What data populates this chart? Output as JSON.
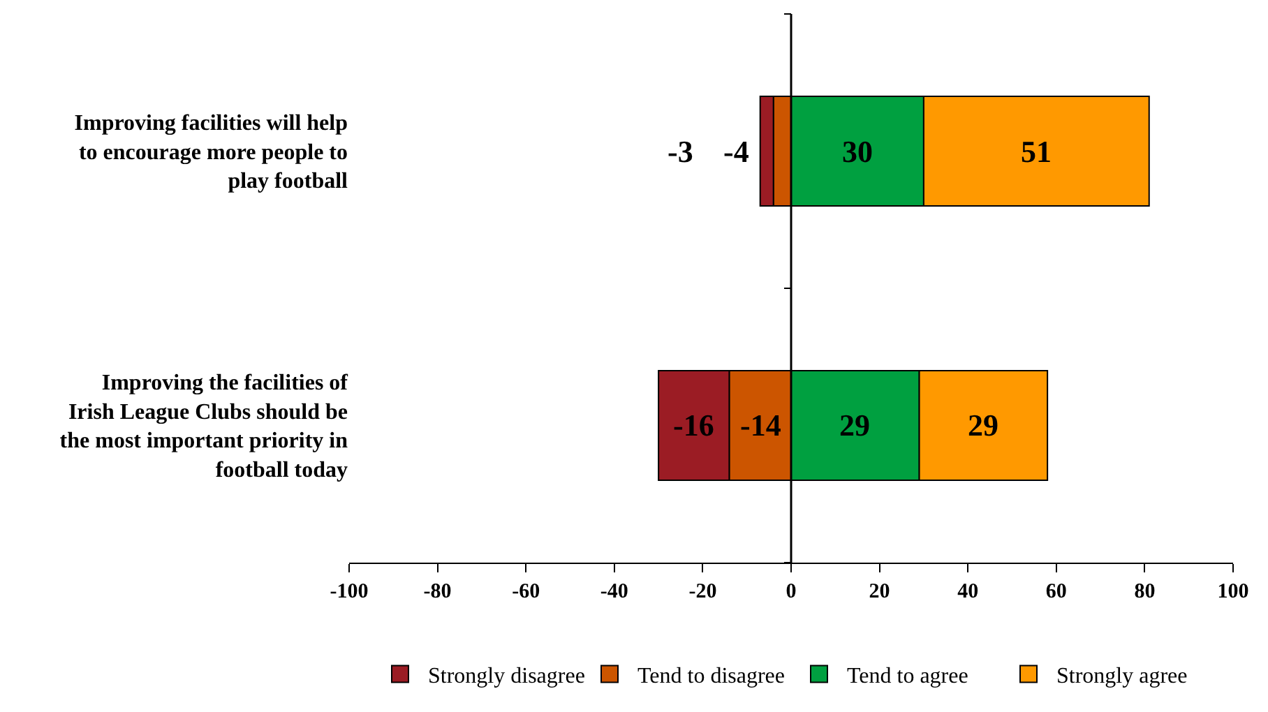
{
  "chart_data": {
    "type": "bar",
    "orientation": "horizontal",
    "stacked": true,
    "data_labels": true,
    "legend": "bottom",
    "grid": false,
    "categories": [
      "Improving facilities will help to encourage more people to play football",
      "Improving the facilities of Irish League Clubs should be the most important priority in football today"
    ],
    "series": [
      {
        "name": "Strongly disagree",
        "color": "#9b1c24",
        "values": [
          -3,
          -16
        ]
      },
      {
        "name": "Tend to disagree",
        "color": "#cc5500",
        "values": [
          -4,
          -14
        ]
      },
      {
        "name": "Tend to agree",
        "color": "#00a040",
        "values": [
          30,
          29
        ]
      },
      {
        "name": "Strongly agree",
        "color": "#ff9900",
        "values": [
          51,
          29
        ]
      }
    ],
    "ref_lines": [
      {
        "axis": "x",
        "value": 0,
        "color": "#000000"
      }
    ],
    "xlim": [
      -100,
      100
    ],
    "xticks": [
      -100,
      -80,
      -60,
      -40,
      -20,
      0,
      20,
      40,
      60,
      80,
      100
    ]
  }
}
